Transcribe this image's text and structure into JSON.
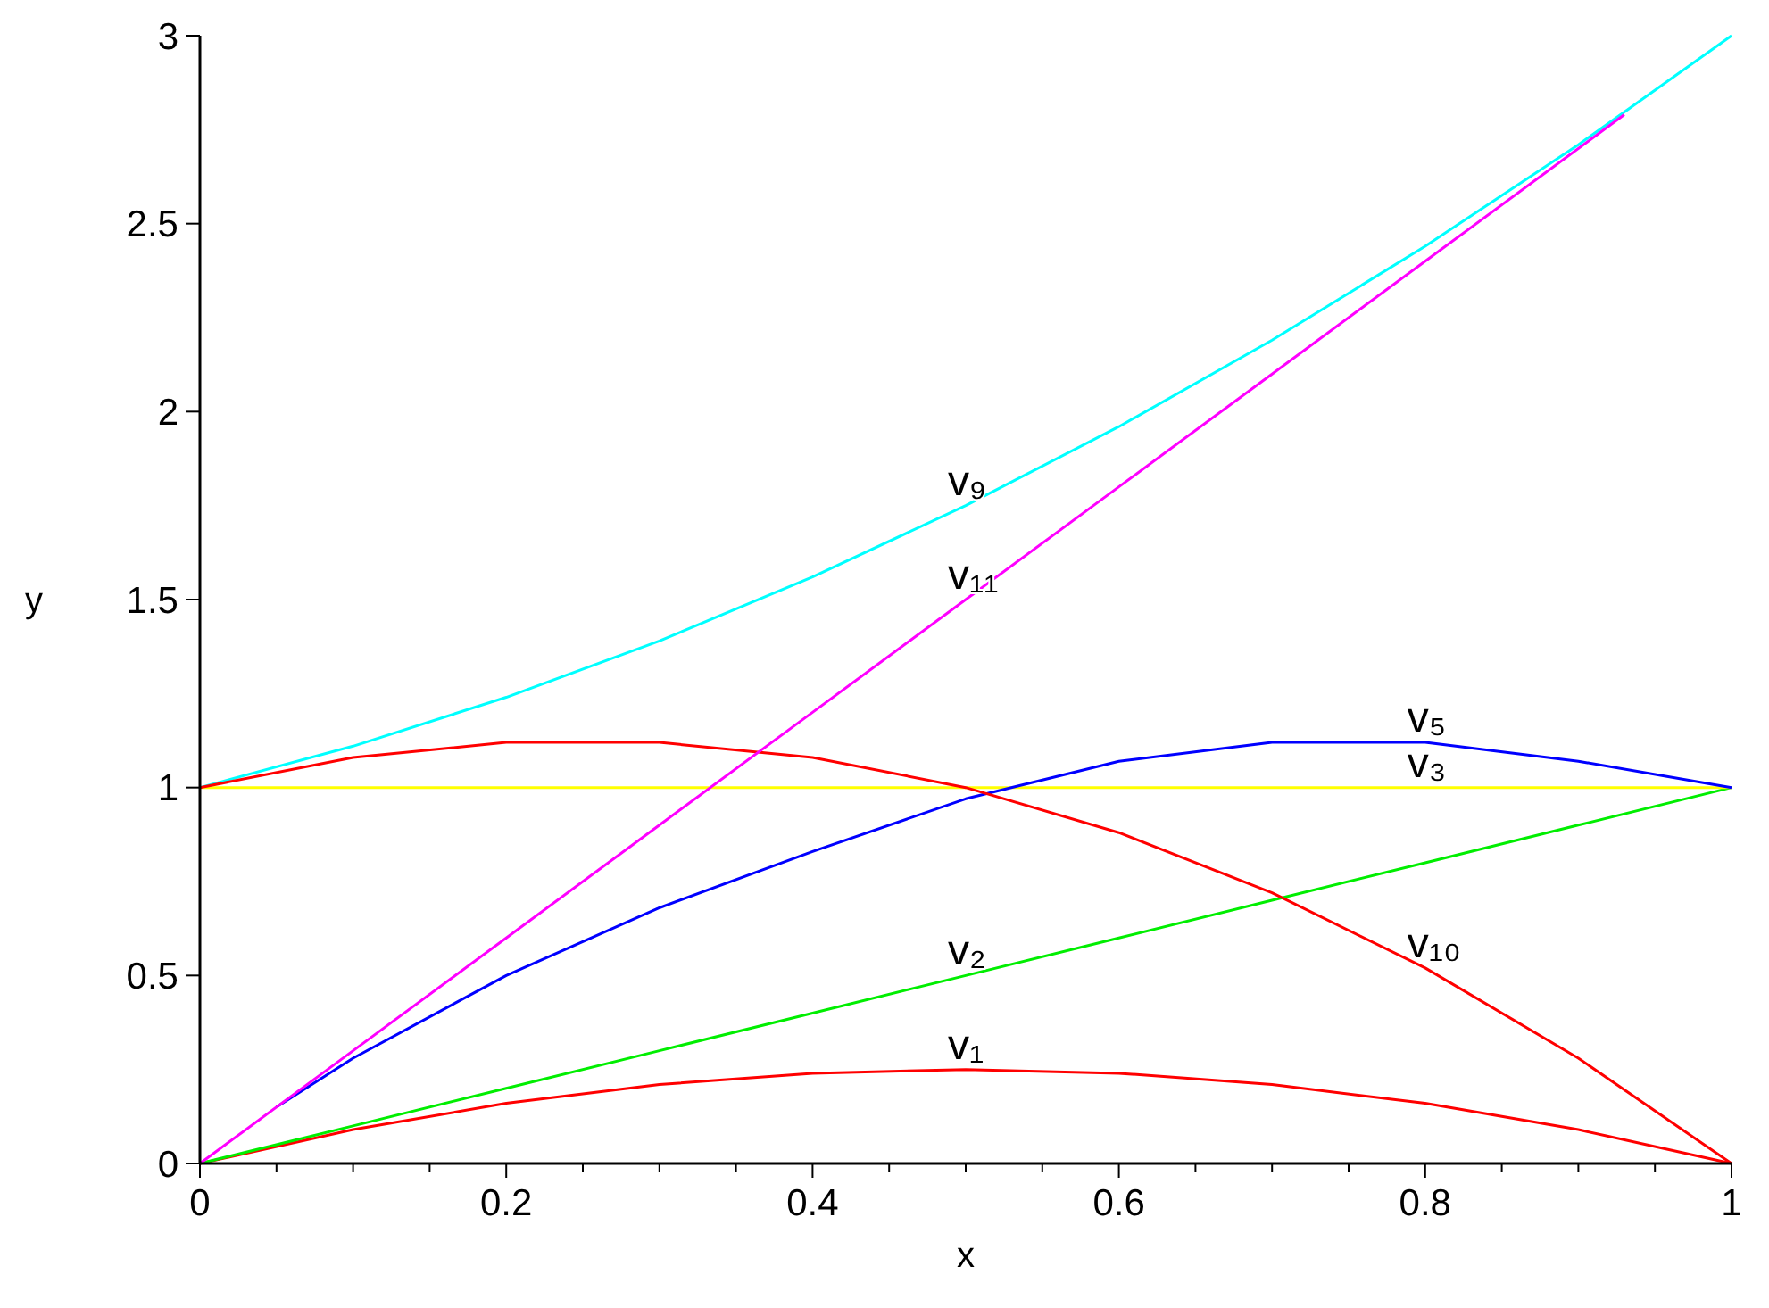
{
  "chart_data": {
    "type": "line",
    "xlabel": "x",
    "ylabel": "y",
    "xlim": [
      0,
      1
    ],
    "ylim": [
      0,
      3
    ],
    "xticks": [
      0,
      {
        "value": 0.05,
        "label": null
      },
      {
        "value": 0.1,
        "label": null
      },
      {
        "value": 0.15,
        "label": null
      },
      0.2,
      {
        "value": 0.25,
        "label": null
      },
      {
        "value": 0.3,
        "label": null
      },
      {
        "value": 0.35,
        "label": null
      },
      0.4,
      {
        "value": 0.45,
        "label": null
      },
      {
        "value": 0.5,
        "label": null
      },
      {
        "value": 0.55,
        "label": null
      },
      0.6,
      {
        "value": 0.65,
        "label": null
      },
      {
        "value": 0.7,
        "label": null
      },
      {
        "value": 0.75,
        "label": null
      },
      0.8,
      {
        "value": 0.85,
        "label": null
      },
      {
        "value": 0.9,
        "label": null
      },
      {
        "value": 0.95,
        "label": null
      },
      1
    ],
    "yticks": [
      0,
      0.5,
      1,
      1.5,
      2,
      2.5,
      3
    ],
    "x": [
      0,
      0.1,
      0.2,
      0.3,
      0.4,
      0.5,
      0.6,
      0.7,
      0.8,
      0.9,
      1
    ],
    "series": [
      {
        "name": "v₁",
        "color": "#ff0000",
        "values": [
          0,
          0.09,
          0.16,
          0.21,
          0.24,
          0.25,
          0.24,
          0.21,
          0.16,
          0.09,
          0
        ]
      },
      {
        "name": "v₂",
        "color": "#00ee00",
        "values": [
          0,
          0.1,
          0.2,
          0.3,
          0.4,
          0.5,
          0.6,
          0.7,
          0.8,
          0.9,
          1
        ]
      },
      {
        "name": "v₃",
        "color": "#ffff00",
        "values": [
          1,
          1,
          1,
          1,
          1,
          1,
          1,
          1,
          1,
          1,
          1
        ]
      },
      {
        "name": "v₅",
        "color": "#0000ff",
        "x": [
          0.05,
          0.1,
          0.2,
          0.3,
          0.4,
          0.5,
          0.6,
          0.7,
          0.8,
          0.9,
          1
        ],
        "values": [
          0.15,
          0.28,
          0.5,
          0.68,
          0.83,
          0.97,
          1.07,
          1.12,
          1.12,
          1.07,
          1
        ]
      },
      {
        "name": "v₉",
        "color": "#00ffff",
        "values": [
          1,
          1.11,
          1.24,
          1.39,
          1.56,
          1.75,
          1.96,
          2.19,
          2.44,
          2.71,
          3
        ]
      },
      {
        "name": "v₁₀",
        "color": "#ff0000",
        "values": [
          1,
          1.08,
          1.12,
          1.12,
          1.08,
          1,
          0.88,
          0.72,
          0.52,
          0.28,
          0
        ]
      },
      {
        "name": "v₁₁",
        "color": "#ff00ff",
        "x": [
          0,
          0.1,
          0.2,
          0.3,
          0.4,
          0.5,
          0.6,
          0.7,
          0.8,
          0.93
        ],
        "values": [
          0,
          0.3,
          0.6,
          0.9,
          1.2,
          1.5,
          1.8,
          2.1,
          2.4,
          2.79
        ]
      }
    ],
    "grid": false,
    "line_style": "solid"
  }
}
